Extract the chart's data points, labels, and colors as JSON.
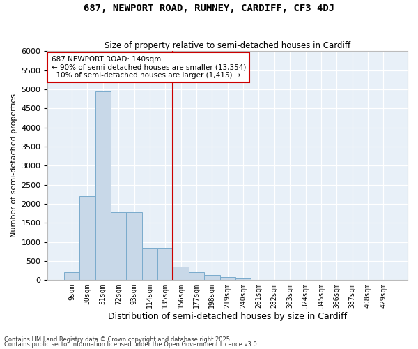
{
  "title": "687, NEWPORT ROAD, RUMNEY, CARDIFF, CF3 4DJ",
  "subtitle": "Size of property relative to semi-detached houses in Cardiff",
  "xlabel": "Distribution of semi-detached houses by size in Cardiff",
  "ylabel": "Number of semi-detached properties",
  "categories": [
    "9sqm",
    "30sqm",
    "51sqm",
    "72sqm",
    "93sqm",
    "114sqm",
    "135sqm",
    "156sqm",
    "177sqm",
    "198sqm",
    "219sqm",
    "240sqm",
    "261sqm",
    "282sqm",
    "303sqm",
    "324sqm",
    "345sqm",
    "366sqm",
    "387sqm",
    "408sqm",
    "429sqm"
  ],
  "values": [
    200,
    2200,
    4950,
    1780,
    1780,
    820,
    820,
    350,
    200,
    130,
    80,
    60,
    0,
    0,
    0,
    0,
    0,
    0,
    0,
    0,
    0
  ],
  "bar_color": "#c8d8e8",
  "bar_edge_color": "#7aabcc",
  "background_color": "#e8f0f8",
  "grid_color": "#ffffff",
  "vline_color": "#cc0000",
  "property_label": "687 NEWPORT ROAD: 140sqm",
  "pct_smaller": 90,
  "n_smaller": "13,354",
  "pct_larger": 10,
  "n_larger": "1,415",
  "annotation_box_color": "#cc0000",
  "ylim": [
    0,
    6000
  ],
  "yticks": [
    0,
    500,
    1000,
    1500,
    2000,
    2500,
    3000,
    3500,
    4000,
    4500,
    5000,
    5500,
    6000
  ],
  "footnote1": "Contains HM Land Registry data © Crown copyright and database right 2025.",
  "footnote2": "Contains public sector information licensed under the Open Government Licence v3.0."
}
